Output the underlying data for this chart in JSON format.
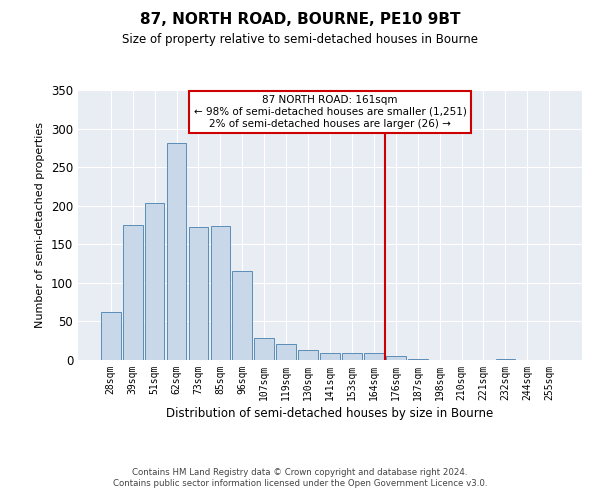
{
  "title": "87, NORTH ROAD, BOURNE, PE10 9BT",
  "subtitle": "Size of property relative to semi-detached houses in Bourne",
  "xlabel": "Distribution of semi-detached houses by size in Bourne",
  "ylabel": "Number of semi-detached properties",
  "categories": [
    "28sqm",
    "39sqm",
    "51sqm",
    "62sqm",
    "73sqm",
    "85sqm",
    "96sqm",
    "107sqm",
    "119sqm",
    "130sqm",
    "141sqm",
    "153sqm",
    "164sqm",
    "176sqm",
    "187sqm",
    "198sqm",
    "210sqm",
    "221sqm",
    "232sqm",
    "244sqm",
    "255sqm"
  ],
  "values": [
    62,
    175,
    204,
    281,
    172,
    174,
    115,
    28,
    21,
    13,
    9,
    9,
    9,
    5,
    1,
    0,
    0,
    0,
    1,
    0,
    0
  ],
  "bar_color": "#c8d8e8",
  "bar_edge_color": "#5b8db8",
  "vline_color": "#cc0000",
  "annotation_title": "87 NORTH ROAD: 161sqm",
  "annotation_line1": "← 98% of semi-detached houses are smaller (1,251)",
  "annotation_line2": "2% of semi-detached houses are larger (26) →",
  "annotation_box_color": "#ffffff",
  "annotation_box_edge": "#cc0000",
  "ylim": [
    0,
    350
  ],
  "yticks": [
    0,
    50,
    100,
    150,
    200,
    250,
    300,
    350
  ],
  "background_color": "#e8edf3",
  "footer1": "Contains HM Land Registry data © Crown copyright and database right 2024.",
  "footer2": "Contains public sector information licensed under the Open Government Licence v3.0."
}
